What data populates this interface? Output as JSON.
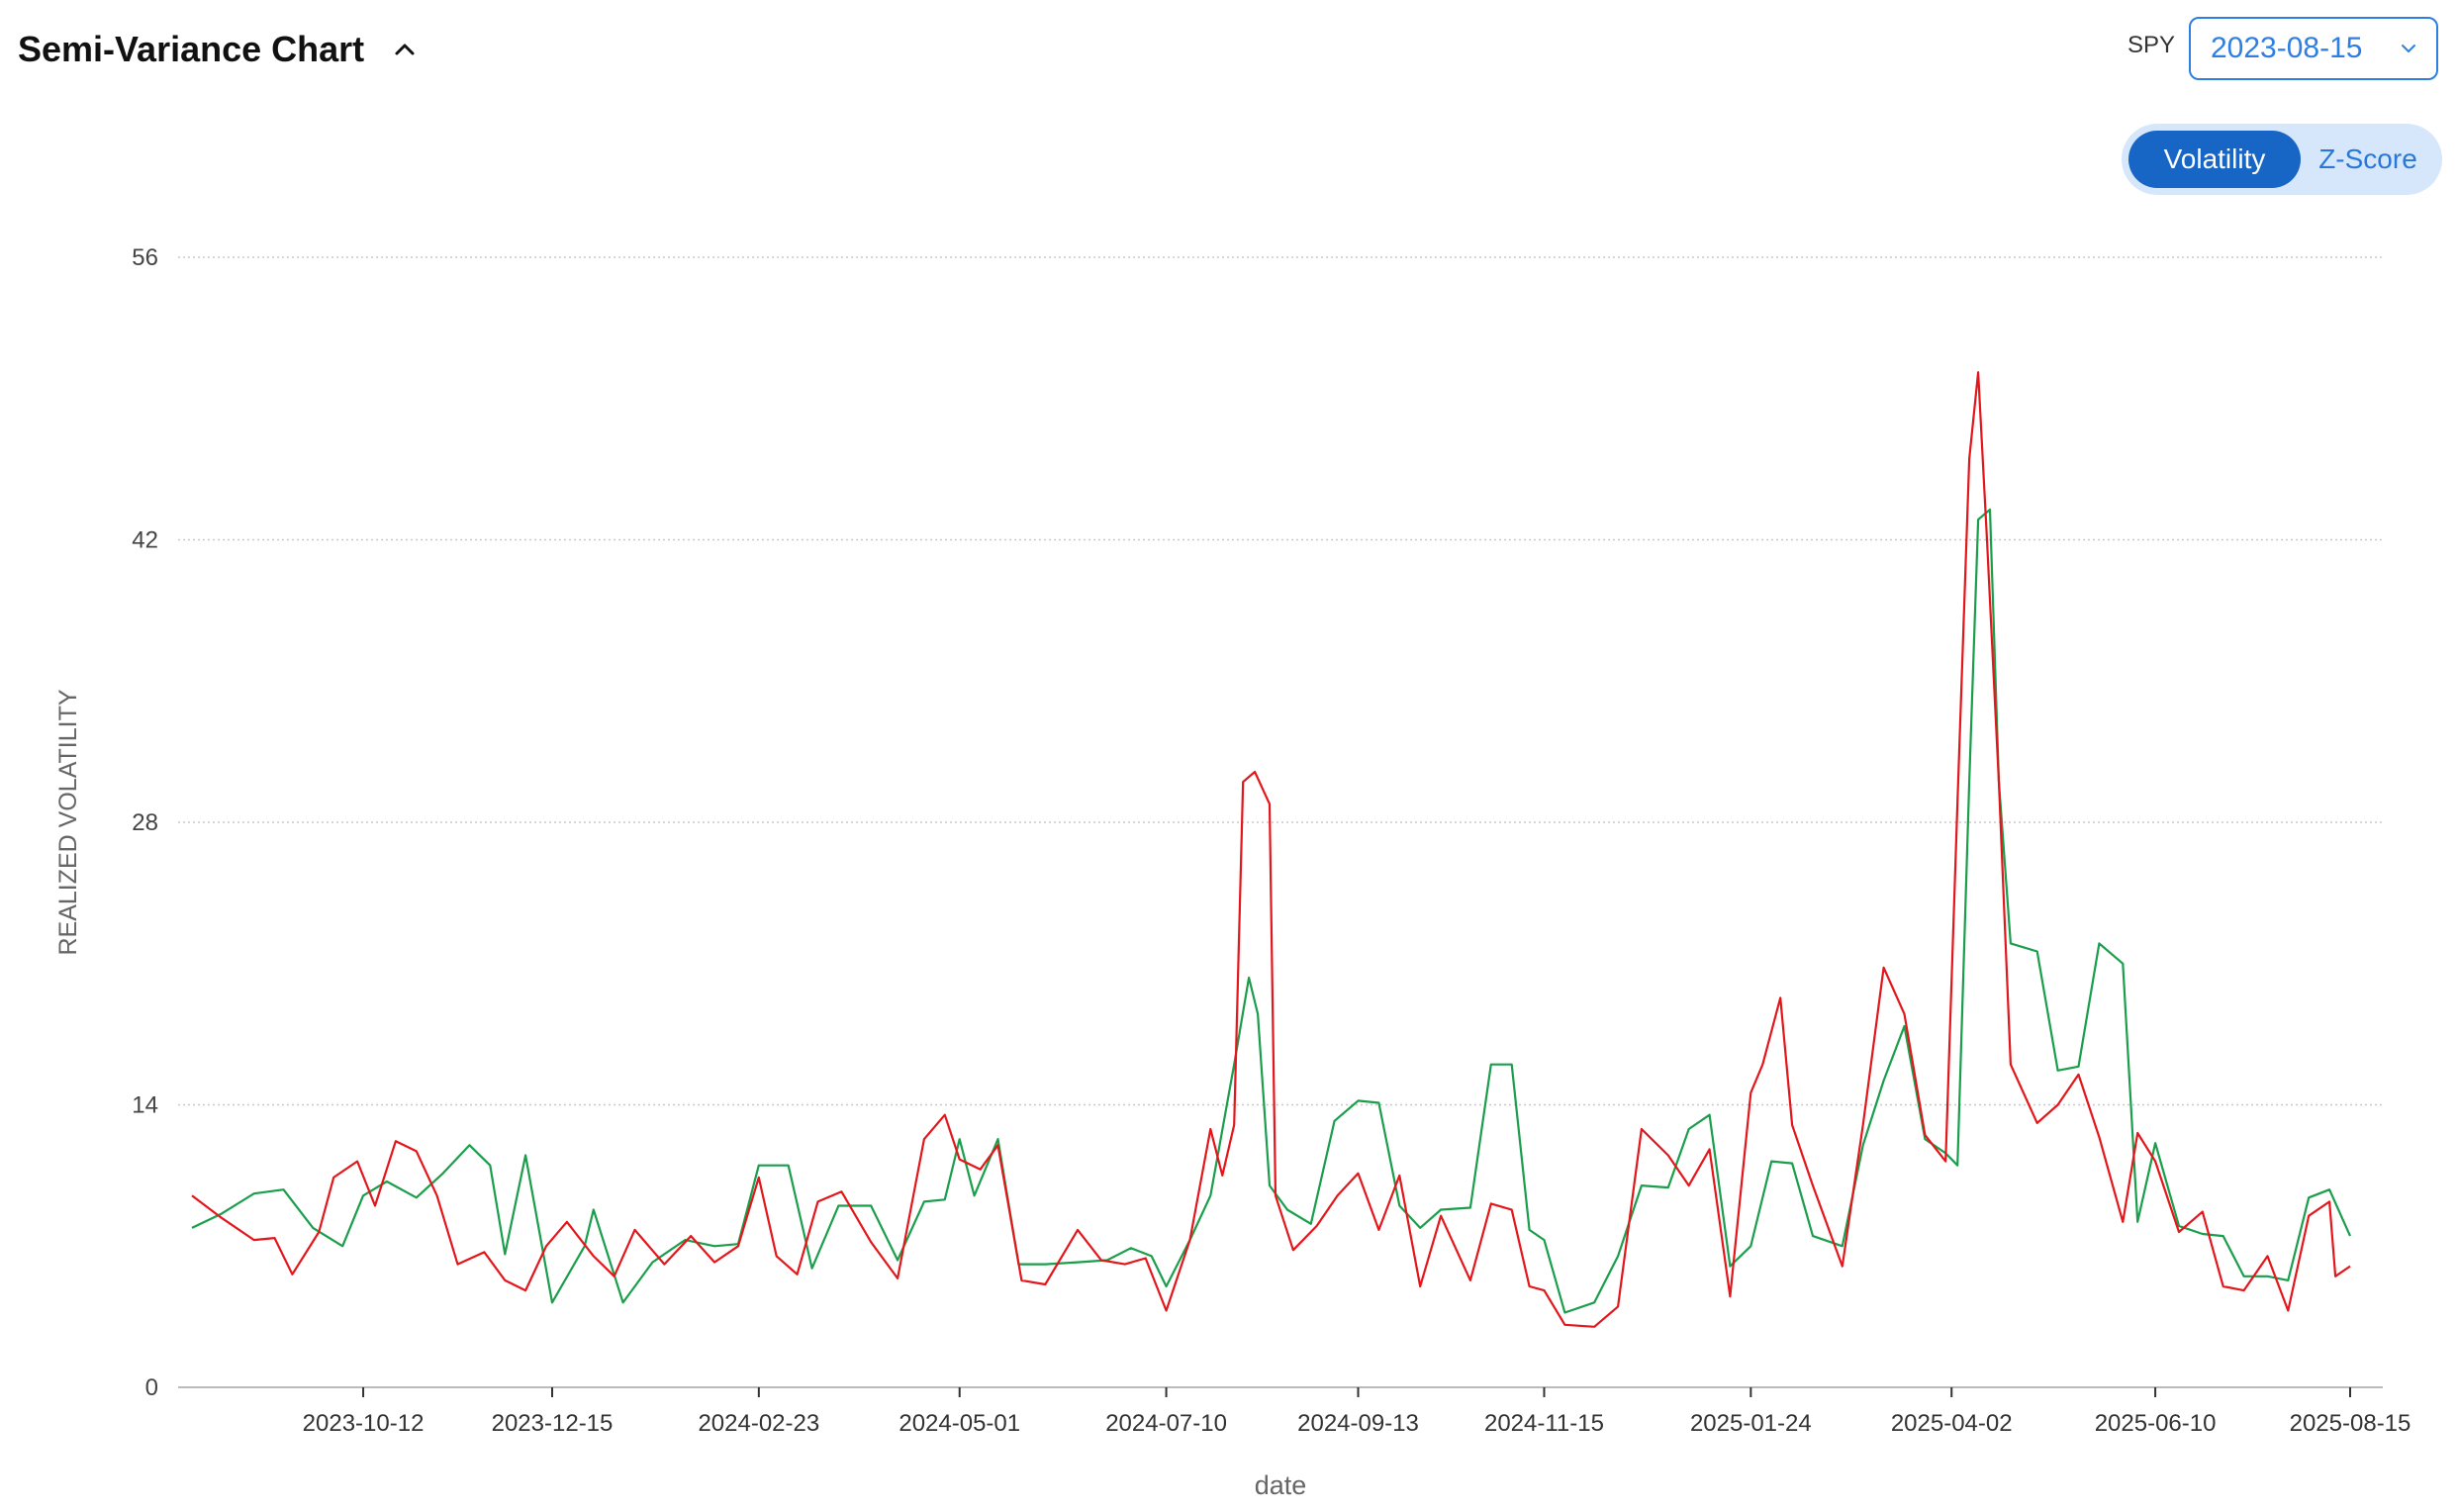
{
  "header": {
    "title": "Semi-Variance Chart"
  },
  "controls": {
    "ticker": "SPY",
    "date_value": "2023-08-15",
    "toggle": [
      {
        "label": "Volatility",
        "active": true
      },
      {
        "label": "Z-Score",
        "active": false
      }
    ]
  },
  "colors": {
    "upside": "#1a9e4b",
    "downside": "#e3161b",
    "accent": "#1765c5"
  },
  "chart_data": {
    "type": "line",
    "xlabel": "date",
    "ylabel": "REALIZED VOLATILITY",
    "ylim": [
      0,
      56
    ],
    "xlim": [
      "2023-08-15",
      "2025-08-15"
    ],
    "y_ticks": [
      0,
      14,
      28,
      42,
      56
    ],
    "x_ticks": [
      "2023-10-12",
      "2023-12-15",
      "2024-02-23",
      "2024-05-01",
      "2024-07-10",
      "2024-09-13",
      "2024-11-15",
      "2025-01-24",
      "2025-04-02",
      "2025-06-10",
      "2025-08-15"
    ],
    "grid": true,
    "series": [
      {
        "color": "#1a9e4b",
        "points": [
          [
            "2023-08-15",
            7.9
          ],
          [
            "2023-08-25",
            8.6
          ],
          [
            "2023-09-05",
            9.6
          ],
          [
            "2023-09-15",
            9.8
          ],
          [
            "2023-09-25",
            7.9
          ],
          [
            "2023-10-05",
            7.0
          ],
          [
            "2023-10-12",
            9.5
          ],
          [
            "2023-10-20",
            10.2
          ],
          [
            "2023-10-30",
            9.4
          ],
          [
            "2023-11-08",
            10.6
          ],
          [
            "2023-11-17",
            12.0
          ],
          [
            "2023-11-24",
            11.0
          ],
          [
            "2023-11-29",
            6.6
          ],
          [
            "2023-12-06",
            11.5
          ],
          [
            "2023-12-15",
            4.2
          ],
          [
            "2023-12-26",
            7.0
          ],
          [
            "2023-12-29",
            8.8
          ],
          [
            "2024-01-08",
            4.2
          ],
          [
            "2024-01-18",
            6.2
          ],
          [
            "2024-01-29",
            7.3
          ],
          [
            "2024-02-08",
            7.0
          ],
          [
            "2024-02-16",
            7.1
          ],
          [
            "2024-02-23",
            11.0
          ],
          [
            "2024-03-04",
            11.0
          ],
          [
            "2024-03-12",
            5.9
          ],
          [
            "2024-03-21",
            9.0
          ],
          [
            "2024-04-01",
            9.0
          ],
          [
            "2024-04-10",
            6.3
          ],
          [
            "2024-04-19",
            9.2
          ],
          [
            "2024-04-26",
            9.3
          ],
          [
            "2024-05-01",
            12.3
          ],
          [
            "2024-05-06",
            9.5
          ],
          [
            "2024-05-14",
            12.3
          ],
          [
            "2024-05-21",
            6.1
          ],
          [
            "2024-05-30",
            6.1
          ],
          [
            "2024-06-10",
            6.2
          ],
          [
            "2024-06-20",
            6.3
          ],
          [
            "2024-06-28",
            6.9
          ],
          [
            "2024-07-05",
            6.5
          ],
          [
            "2024-07-10",
            5.0
          ],
          [
            "2024-07-18",
            7.3
          ],
          [
            "2024-07-25",
            9.5
          ],
          [
            "2024-08-02",
            16.0
          ],
          [
            "2024-08-07",
            20.3
          ],
          [
            "2024-08-10",
            18.5
          ],
          [
            "2024-08-14",
            10.0
          ],
          [
            "2024-08-20",
            8.8
          ],
          [
            "2024-08-28",
            8.1
          ],
          [
            "2024-09-05",
            13.2
          ],
          [
            "2024-09-13",
            14.2
          ],
          [
            "2024-09-20",
            14.1
          ],
          [
            "2024-09-27",
            9.0
          ],
          [
            "2024-10-04",
            7.9
          ],
          [
            "2024-10-11",
            8.8
          ],
          [
            "2024-10-21",
            8.9
          ],
          [
            "2024-10-28",
            16.0
          ],
          [
            "2024-11-04",
            16.0
          ],
          [
            "2024-11-10",
            7.8
          ],
          [
            "2024-11-15",
            7.3
          ],
          [
            "2024-11-22",
            3.7
          ],
          [
            "2024-12-02",
            4.2
          ],
          [
            "2024-12-10",
            6.5
          ],
          [
            "2024-12-18",
            10.0
          ],
          [
            "2024-12-27",
            9.9
          ],
          [
            "2025-01-03",
            12.8
          ],
          [
            "2025-01-10",
            13.5
          ],
          [
            "2025-01-17",
            6.0
          ],
          [
            "2025-01-24",
            7.0
          ],
          [
            "2025-01-31",
            11.2
          ],
          [
            "2025-02-07",
            11.1
          ],
          [
            "2025-02-14",
            7.5
          ],
          [
            "2025-02-24",
            7.0
          ],
          [
            "2025-03-03",
            12.0
          ],
          [
            "2025-03-10",
            15.2
          ],
          [
            "2025-03-17",
            17.9
          ],
          [
            "2025-03-24",
            12.3
          ],
          [
            "2025-03-31",
            11.6
          ],
          [
            "2025-04-04",
            11.0
          ],
          [
            "2025-04-08",
            30.0
          ],
          [
            "2025-04-11",
            43.0
          ],
          [
            "2025-04-15",
            43.5
          ],
          [
            "2025-04-18",
            30.0
          ],
          [
            "2025-04-22",
            22.0
          ],
          [
            "2025-05-01",
            21.6
          ],
          [
            "2025-05-08",
            15.7
          ],
          [
            "2025-05-15",
            15.9
          ],
          [
            "2025-05-22",
            22.0
          ],
          [
            "2025-05-30",
            21.0
          ],
          [
            "2025-06-04",
            8.2
          ],
          [
            "2025-06-10",
            12.1
          ],
          [
            "2025-06-18",
            8.0
          ],
          [
            "2025-06-26",
            7.6
          ],
          [
            "2025-07-03",
            7.5
          ],
          [
            "2025-07-10",
            5.5
          ],
          [
            "2025-07-18",
            5.5
          ],
          [
            "2025-07-25",
            5.3
          ],
          [
            "2025-08-01",
            9.4
          ],
          [
            "2025-08-08",
            9.8
          ],
          [
            "2025-08-15",
            7.5
          ]
        ]
      },
      {
        "color": "#e3161b",
        "points": [
          [
            "2023-08-15",
            9.5
          ],
          [
            "2023-08-25",
            8.4
          ],
          [
            "2023-09-05",
            7.3
          ],
          [
            "2023-09-12",
            7.4
          ],
          [
            "2023-09-18",
            5.6
          ],
          [
            "2023-09-27",
            7.7
          ],
          [
            "2023-10-02",
            10.4
          ],
          [
            "2023-10-10",
            11.2
          ],
          [
            "2023-10-16",
            9.0
          ],
          [
            "2023-10-23",
            12.2
          ],
          [
            "2023-10-30",
            11.7
          ],
          [
            "2023-11-06",
            9.5
          ],
          [
            "2023-11-13",
            6.1
          ],
          [
            "2023-11-22",
            6.7
          ],
          [
            "2023-11-29",
            5.3
          ],
          [
            "2023-12-06",
            4.8
          ],
          [
            "2023-12-13",
            7.0
          ],
          [
            "2023-12-20",
            8.2
          ],
          [
            "2023-12-29",
            6.5
          ],
          [
            "2024-01-05",
            5.5
          ],
          [
            "2024-01-12",
            7.8
          ],
          [
            "2024-01-22",
            6.1
          ],
          [
            "2024-01-31",
            7.5
          ],
          [
            "2024-02-08",
            6.2
          ],
          [
            "2024-02-16",
            7.0
          ],
          [
            "2024-02-23",
            10.4
          ],
          [
            "2024-02-29",
            6.5
          ],
          [
            "2024-03-07",
            5.6
          ],
          [
            "2024-03-14",
            9.2
          ],
          [
            "2024-03-22",
            9.7
          ],
          [
            "2024-04-01",
            7.2
          ],
          [
            "2024-04-10",
            5.4
          ],
          [
            "2024-04-19",
            12.3
          ],
          [
            "2024-04-26",
            13.5
          ],
          [
            "2024-05-01",
            11.3
          ],
          [
            "2024-05-08",
            10.8
          ],
          [
            "2024-05-14",
            12.0
          ],
          [
            "2024-05-22",
            5.3
          ],
          [
            "2024-05-30",
            5.1
          ],
          [
            "2024-06-10",
            7.8
          ],
          [
            "2024-06-18",
            6.3
          ],
          [
            "2024-06-26",
            6.1
          ],
          [
            "2024-07-03",
            6.4
          ],
          [
            "2024-07-10",
            3.8
          ],
          [
            "2024-07-18",
            7.3
          ],
          [
            "2024-07-25",
            12.8
          ],
          [
            "2024-07-29",
            10.5
          ],
          [
            "2024-08-02",
            13.0
          ],
          [
            "2024-08-05",
            30.0
          ],
          [
            "2024-08-09",
            30.5
          ],
          [
            "2024-08-14",
            28.9
          ],
          [
            "2024-08-16",
            9.5
          ],
          [
            "2024-08-22",
            6.8
          ],
          [
            "2024-08-30",
            8.0
          ],
          [
            "2024-09-06",
            9.5
          ],
          [
            "2024-09-13",
            10.6
          ],
          [
            "2024-09-20",
            7.8
          ],
          [
            "2024-09-27",
            10.5
          ],
          [
            "2024-10-04",
            5.0
          ],
          [
            "2024-10-11",
            8.5
          ],
          [
            "2024-10-21",
            5.3
          ],
          [
            "2024-10-28",
            9.1
          ],
          [
            "2024-11-04",
            8.8
          ],
          [
            "2024-11-10",
            5.0
          ],
          [
            "2024-11-15",
            4.8
          ],
          [
            "2024-11-22",
            3.1
          ],
          [
            "2024-12-02",
            3.0
          ],
          [
            "2024-12-10",
            4.0
          ],
          [
            "2024-12-18",
            12.8
          ],
          [
            "2024-12-27",
            11.5
          ],
          [
            "2025-01-03",
            10.0
          ],
          [
            "2025-01-10",
            11.8
          ],
          [
            "2025-01-17",
            4.5
          ],
          [
            "2025-01-24",
            14.6
          ],
          [
            "2025-01-28",
            16.0
          ],
          [
            "2025-02-03",
            19.3
          ],
          [
            "2025-02-07",
            13.0
          ],
          [
            "2025-02-14",
            10.0
          ],
          [
            "2025-02-24",
            6.0
          ],
          [
            "2025-03-03",
            13.0
          ],
          [
            "2025-03-10",
            20.8
          ],
          [
            "2025-03-17",
            18.5
          ],
          [
            "2025-03-24",
            12.5
          ],
          [
            "2025-03-31",
            11.2
          ],
          [
            "2025-04-04",
            29.0
          ],
          [
            "2025-04-08",
            46.0
          ],
          [
            "2025-04-11",
            50.3
          ],
          [
            "2025-04-14",
            42.0
          ],
          [
            "2025-04-18",
            30.0
          ],
          [
            "2025-04-22",
            16.0
          ],
          [
            "2025-05-01",
            13.1
          ],
          [
            "2025-05-08",
            14.0
          ],
          [
            "2025-05-15",
            15.5
          ],
          [
            "2025-05-22",
            12.4
          ],
          [
            "2025-05-30",
            8.2
          ],
          [
            "2025-06-04",
            12.6
          ],
          [
            "2025-06-10",
            11.2
          ],
          [
            "2025-06-18",
            7.7
          ],
          [
            "2025-06-26",
            8.7
          ],
          [
            "2025-07-03",
            5.0
          ],
          [
            "2025-07-10",
            4.8
          ],
          [
            "2025-07-18",
            6.5
          ],
          [
            "2025-07-25",
            3.8
          ],
          [
            "2025-08-01",
            8.5
          ],
          [
            "2025-08-08",
            9.2
          ],
          [
            "2025-08-10",
            5.5
          ],
          [
            "2025-08-15",
            6.0
          ]
        ]
      }
    ]
  }
}
